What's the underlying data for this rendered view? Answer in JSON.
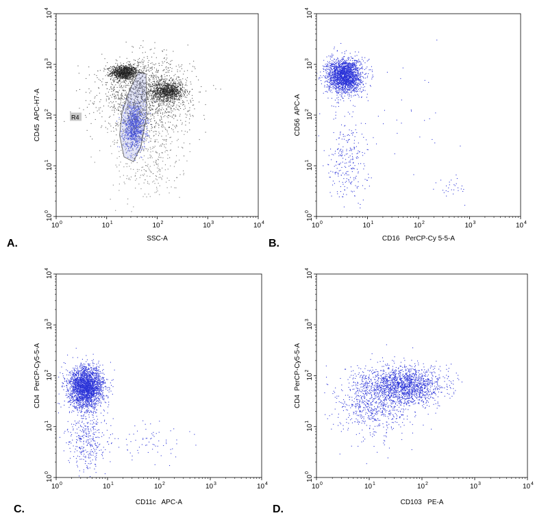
{
  "chart_data": [
    {
      "type": "scatter",
      "panel_label": "A.",
      "xlabel": "SSC-A",
      "ylabel": "CD45  APC-H7-A",
      "xscale": "log",
      "yscale": "log",
      "xlim": [
        1,
        10000
      ],
      "ylim": [
        1,
        10000
      ],
      "tick_values": [
        1,
        10,
        100,
        1000,
        10000
      ],
      "gate": {
        "name": "R4",
        "fill": "#7b83d8",
        "outline": "#555555"
      },
      "colors": {
        "background_events": "#3a3a3a",
        "gated_events": "#3a46d6"
      },
      "populations": [
        {
          "name": "",
          "color": "#222222",
          "center": [
            22,
            700
          ],
          "spread": [
            0.13,
            0.07
          ],
          "count": 950
        },
        {
          "name": "",
          "color": "#222222",
          "center": [
            160,
            300
          ],
          "spread": [
            0.15,
            0.09
          ],
          "count": 800
        },
        {
          "name": "",
          "color": "#3a46d6",
          "center": [
            35,
            60
          ],
          "spread": [
            0.11,
            0.23
          ],
          "count": 1000
        },
        {
          "name": "",
          "color": "#555555",
          "center": [
            60,
            250
          ],
          "spread": [
            0.45,
            0.35
          ],
          "count": 1700
        },
        {
          "name": "",
          "color": "#777777",
          "center": [
            60,
            15
          ],
          "spread": [
            0.35,
            0.45
          ],
          "count": 350
        }
      ]
    },
    {
      "type": "scatter",
      "panel_label": "B.",
      "xlabel": "CD16   PerCP-Cy 5-5-A",
      "ylabel": "CD56  APC-A",
      "xscale": "log",
      "yscale": "log",
      "xlim": [
        1,
        10000
      ],
      "ylim": [
        1,
        10000
      ],
      "tick_values": [
        1,
        10,
        100,
        1000,
        10000
      ],
      "colors": {
        "events": "#2a32d8"
      },
      "populations": [
        {
          "name": "",
          "color": "#2a32d8",
          "center": [
            3.5,
            600
          ],
          "spread": [
            0.17,
            0.17
          ],
          "count": 2100
        },
        {
          "name": "",
          "color": "#2a32d8",
          "center": [
            4,
            15
          ],
          "spread": [
            0.2,
            0.45
          ],
          "count": 260
        },
        {
          "name": "",
          "color": "#2a32d8",
          "center": [
            450,
            4
          ],
          "spread": [
            0.13,
            0.12
          ],
          "count": 28
        },
        {
          "name": "",
          "color": "#2a32d8",
          "center": [
            60,
            100
          ],
          "spread": [
            0.5,
            0.6
          ],
          "count": 30
        }
      ]
    },
    {
      "type": "scatter",
      "panel_label": "C.",
      "xlabel": "CD11c   APC-A",
      "ylabel": "CD4  PerCP-Cy5-5-A",
      "xscale": "log",
      "yscale": "log",
      "xlim": [
        1,
        10000
      ],
      "ylim": [
        1,
        10000
      ],
      "tick_values": [
        1,
        10,
        100,
        1000,
        10000
      ],
      "colors": {
        "events": "#2a32d8"
      },
      "populations": [
        {
          "name": "",
          "color": "#2a32d8",
          "center": [
            3.8,
            60
          ],
          "spread": [
            0.17,
            0.2
          ],
          "count": 2500
        },
        {
          "name": "",
          "color": "#2a32d8",
          "center": [
            4,
            6
          ],
          "spread": [
            0.18,
            0.35
          ],
          "count": 350
        },
        {
          "name": "",
          "color": "#2a32d8",
          "center": [
            60,
            5
          ],
          "spread": [
            0.4,
            0.2
          ],
          "count": 70
        }
      ]
    },
    {
      "type": "scatter",
      "panel_label": "D.",
      "xlabel": "CD103   PE-A",
      "ylabel": "CD4  PerCP-Cy5-5-A",
      "xscale": "log",
      "yscale": "log",
      "xlim": [
        1,
        10000
      ],
      "ylim": [
        1,
        10000
      ],
      "tick_values": [
        1,
        10,
        100,
        1000,
        10000
      ],
      "colors": {
        "events": "#2a32d8"
      },
      "populations": [
        {
          "name": "",
          "color": "#2a32d8",
          "center": [
            50,
            65
          ],
          "spread": [
            0.35,
            0.18
          ],
          "count": 1500
        },
        {
          "name": "",
          "color": "#2a32d8",
          "center": [
            12,
            30
          ],
          "spread": [
            0.35,
            0.35
          ],
          "count": 800
        }
      ]
    }
  ]
}
